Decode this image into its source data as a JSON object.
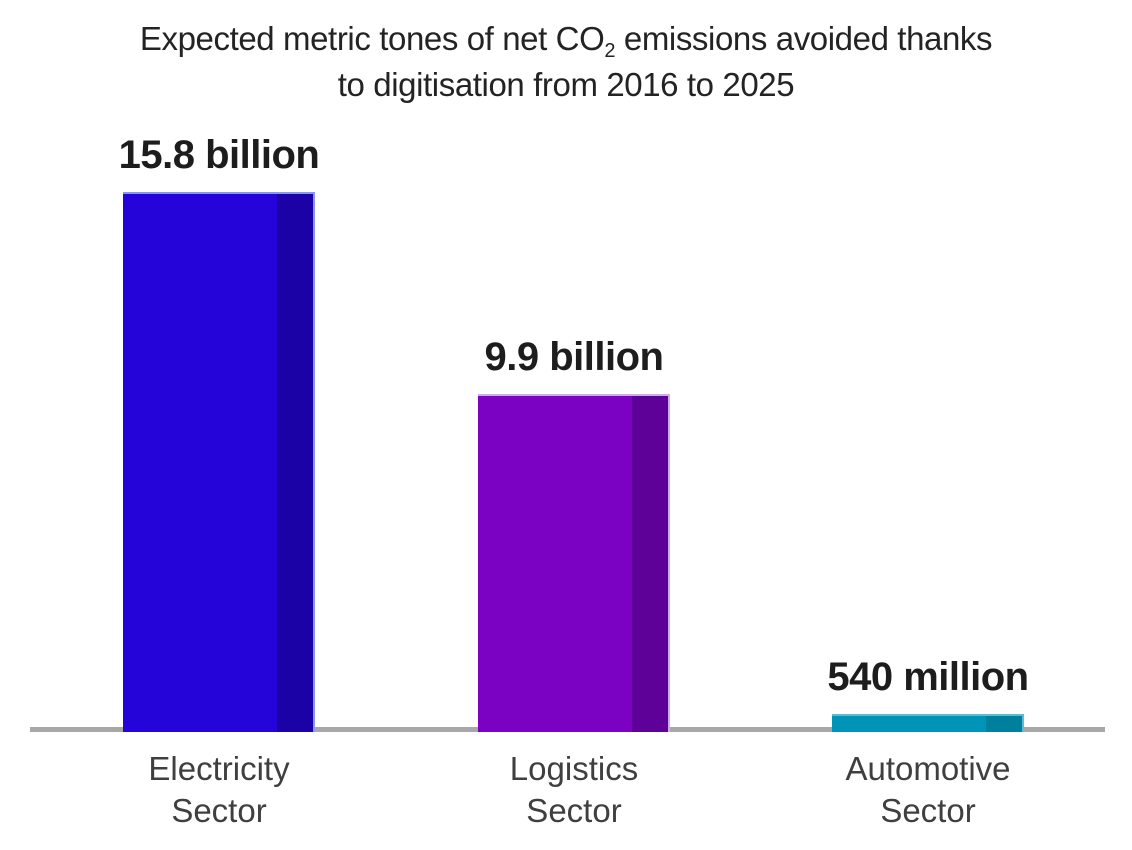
{
  "title": {
    "line1_prefix": "Expected metric tones of net CO",
    "line1_subscript": "2",
    "line1_suffix": " emissions avoided thanks",
    "line2": "to digitisation from 2016 to 2025"
  },
  "chart_data": {
    "type": "bar",
    "title": "Expected metric tones of net CO₂ emissions avoided thanks to digitisation from 2016 to 2025",
    "xlabel": "",
    "ylabel": "",
    "unit": "metric tonnes of net CO₂ emissions avoided",
    "categories": [
      "Electricity Sector",
      "Logistics Sector",
      "Automotive Sector"
    ],
    "values_billions": [
      15.8,
      9.9,
      0.54
    ],
    "value_labels": [
      "15.8 billion",
      "9.9 billion",
      "540 million"
    ],
    "ylim_billions": [
      0,
      15.8
    ],
    "grid": false,
    "legend": "none",
    "axis_line_color": "#a8a8a8",
    "bars": [
      {
        "category_lines": [
          "Electricity",
          "Sector"
        ],
        "value_billions": 15.8,
        "value_label": "15.8 billion",
        "color_main": "#2404d8",
        "color_shade": "#1a02a6",
        "color_edge": "#8a96f0"
      },
      {
        "category_lines": [
          "Logistics",
          "Sector"
        ],
        "value_billions": 9.9,
        "value_label": "9.9 billion",
        "color_main": "#7b01c3",
        "color_shade": "#5d0198",
        "color_edge": "#cfade8"
      },
      {
        "category_lines": [
          "Automotive",
          "Sector"
        ],
        "value_billions": 0.54,
        "value_label": "540 million",
        "color_main": "#0095b7",
        "color_shade": "#00809d",
        "color_edge": "#59bdd3"
      }
    ]
  },
  "colors": {
    "background": "#ffffff",
    "title_text": "#232323",
    "value_label_text": "#1d1d1d",
    "category_label_text": "#3f3f3f"
  }
}
